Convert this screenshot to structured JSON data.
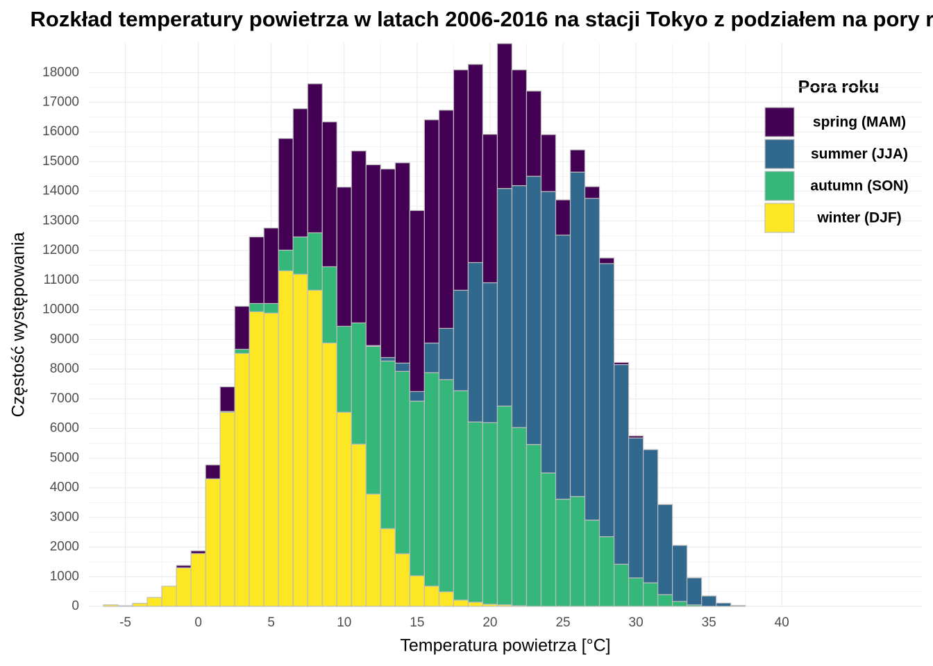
{
  "chart_data": {
    "type": "stacked-histogram",
    "title": "Rozkład temperatury powietrza w latach 2006-2016 na stacji Tokyo z podziałem na pory roku",
    "x_label": "Temperatura powietrza [°C]",
    "y_label": "Częstość występowania",
    "legend_title": "Pora roku",
    "legend_position": "top-right",
    "grid": true,
    "bins": [
      -6.5,
      -5.5,
      -4.5,
      -3.5,
      -2.5,
      -1.5,
      -0.5,
      0.5,
      1.5,
      2.5,
      3.5,
      4.5,
      5.5,
      6.5,
      7.5,
      8.5,
      9.5,
      10.5,
      11.5,
      12.5,
      13.5,
      14.5,
      15.5,
      16.5,
      17.5,
      18.5,
      19.5,
      20.5,
      21.5,
      22.5,
      23.5,
      24.5,
      25.5,
      26.5,
      27.5,
      28.5,
      29.5,
      30.5,
      31.5,
      32.5,
      33.5,
      34.5,
      35.5,
      36.5,
      37.5
    ],
    "xlim": [
      -7.5,
      49.6
    ],
    "xticks": [
      -5,
      0,
      5,
      10,
      15,
      20,
      25,
      30,
      35,
      40
    ],
    "ylim": [
      0,
      19000
    ],
    "yticks": [
      0,
      1000,
      2000,
      3000,
      4000,
      5000,
      6000,
      7000,
      8000,
      9000,
      10000,
      11000,
      12000,
      13000,
      14000,
      15000,
      16000,
      17000,
      18000
    ],
    "series": [
      {
        "name": "spring (MAM)",
        "color": "#440154",
        "values": [
          0,
          0,
          0,
          0,
          0,
          80,
          90,
          470,
          830,
          1450,
          2245,
          2545,
          3765,
          4325,
          5025,
          4885,
          4695,
          5800,
          6100,
          6360,
          6755,
          6105,
          7530,
          7360,
          7435,
          6685,
          5005,
          4885,
          3905,
          2875,
          1920,
          1190,
          750,
          395,
          190,
          70,
          70,
          0,
          0,
          0,
          0,
          0,
          0,
          0
        ]
      },
      {
        "name": "summer (JJA)",
        "color": "#31688e",
        "values": [
          0,
          0,
          0,
          0,
          0,
          0,
          0,
          0,
          0,
          0,
          0,
          0,
          0,
          0,
          0,
          0,
          0,
          0,
          30,
          115,
          280,
          325,
          1000,
          1730,
          3390,
          5375,
          4720,
          7340,
          8160,
          9045,
          9490,
          8905,
          10940,
          10850,
          9210,
          6735,
          4720,
          4490,
          3040,
          1890,
          910,
          350,
          110,
          30
        ]
      },
      {
        "name": "autumn (SON)",
        "color": "#35b779",
        "values": [
          0,
          0,
          0,
          0,
          0,
          0,
          0,
          0,
          30,
          140,
          280,
          325,
          700,
          1260,
          1940,
          2575,
          2900,
          4090,
          4980,
          5655,
          6150,
          5890,
          7200,
          7155,
          7060,
          6080,
          6125,
          6705,
          6010,
          5460,
          4500,
          3615,
          3705,
          2910,
          2350,
          1420,
          960,
          795,
          395,
          165,
          50,
          0,
          0,
          0
        ]
      },
      {
        "name": "winter (DJF)",
        "color": "#fde725",
        "values": [
          50,
          20,
          100,
          300,
          680,
          1300,
          1780,
          4300,
          6545,
          8530,
          9935,
          9890,
          11315,
          11200,
          10660,
          8880,
          6545,
          5470,
          3785,
          2620,
          1775,
          1030,
          680,
          490,
          210,
          140,
          70,
          50,
          20,
          0,
          0,
          0,
          0,
          0,
          0,
          0,
          0,
          0,
          0,
          0,
          0,
          0,
          0,
          0
        ]
      }
    ]
  }
}
